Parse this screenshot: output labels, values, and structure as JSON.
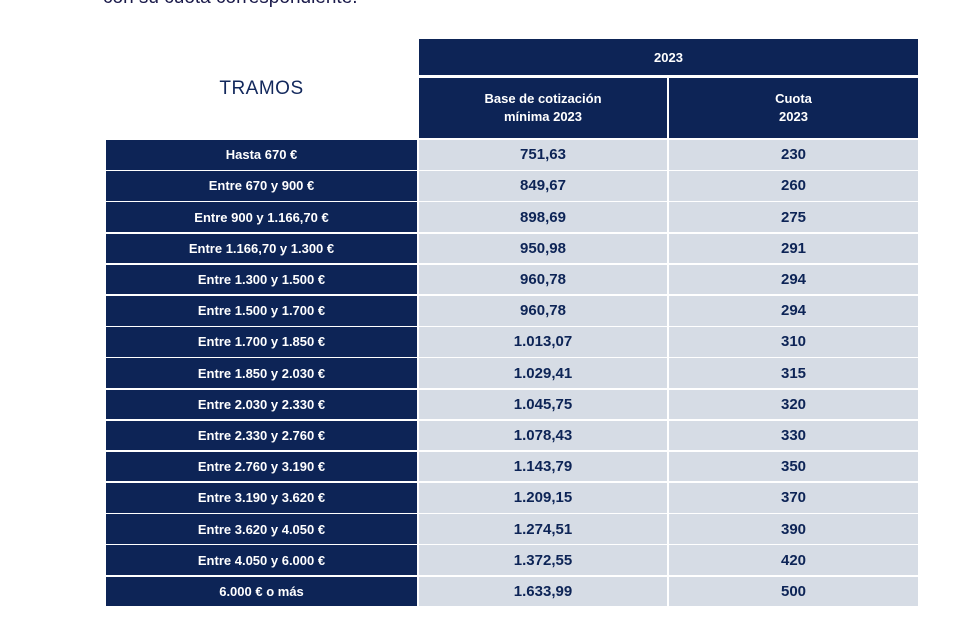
{
  "intro_text": "con su cuota correspondiente.",
  "table": {
    "tramos_title": "TRAMOS",
    "year": "2023",
    "col_base_line1": "Base de cotización",
    "col_base_line2": "mínima 2023",
    "col_cuota_line1": "Cuota",
    "col_cuota_line2": "2023",
    "rows": [
      {
        "tramo": "Hasta 670 €",
        "base": "751,63",
        "cuota": "230"
      },
      {
        "tramo": "Entre 670 y 900 €",
        "base": "849,67",
        "cuota": "260"
      },
      {
        "tramo": "Entre 900 y 1.166,70 €",
        "base": "898,69",
        "cuota": "275"
      },
      {
        "tramo": "Entre 1.166,70 y 1.300 €",
        "base": "950,98",
        "cuota": "291"
      },
      {
        "tramo": "Entre 1.300 y 1.500 €",
        "base": "960,78",
        "cuota": "294"
      },
      {
        "tramo": "Entre 1.500 y 1.700 €",
        "base": "960,78",
        "cuota": "294"
      },
      {
        "tramo": "Entre 1.700 y 1.850 €",
        "base": "1.013,07",
        "cuota": "310"
      },
      {
        "tramo": "Entre 1.850 y 2.030 €",
        "base": "1.029,41",
        "cuota": "315"
      },
      {
        "tramo": "Entre 2.030 y 2.330 €",
        "base": "1.045,75",
        "cuota": "320"
      },
      {
        "tramo": "Entre 2.330 y 2.760 €",
        "base": "1.078,43",
        "cuota": "330"
      },
      {
        "tramo": "Entre 2.760 y 3.190 €",
        "base": "1.143,79",
        "cuota": "350"
      },
      {
        "tramo": "Entre 3.190 y 3.620 €",
        "base": "1.209,15",
        "cuota": "370"
      },
      {
        "tramo": "Entre 3.620 y 4.050 €",
        "base": "1.274,51",
        "cuota": "390"
      },
      {
        "tramo": "Entre 4.050 y 6.000 €",
        "base": "1.372,55",
        "cuota": "420"
      },
      {
        "tramo": "6.000 € o más",
        "base": "1.633,99",
        "cuota": "500"
      }
    ]
  },
  "colors": {
    "header_bg": "#0d2456",
    "cell_bg": "#d6dce5",
    "value_text": "#0d2456"
  }
}
